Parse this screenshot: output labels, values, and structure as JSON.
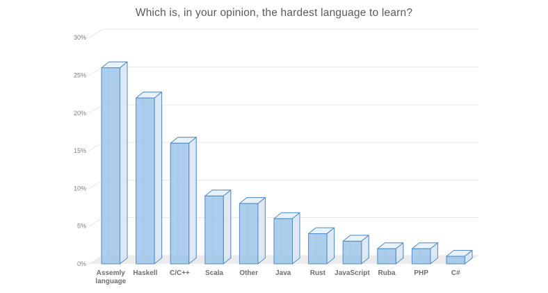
{
  "page": {
    "background": "#FFFFFF"
  },
  "chart_data": {
    "type": "bar",
    "style": "3d-box-columns",
    "title": "Which is, in your opinion, the hardest language to learn?",
    "categories": [
      "Assemly language",
      "Haskell",
      "C/C++",
      "Scala",
      "Other",
      "Java",
      "Rust",
      "JavaScript",
      "Ruba",
      "PHP",
      "C#"
    ],
    "values": [
      26,
      22,
      16,
      9,
      8,
      6,
      4,
      3,
      2,
      2,
      1
    ],
    "unit": "%",
    "xlabel": "",
    "ylabel": "",
    "ylim": [
      0,
      30
    ],
    "ytick_step": 5,
    "yticks": [
      "0%",
      "5%",
      "10%",
      "15%",
      "20%",
      "25%",
      "30%"
    ],
    "grid": true,
    "legend": false,
    "colors": {
      "bar_fill": "#9DC5E9",
      "bar_fill_opacity": "0.85",
      "bar_top": "#E9F1F9",
      "bar_side": "#D9E7F4",
      "bar_edge": "#4E8BC8",
      "bar_back_edge": "#9FC2E5",
      "gridline": "#E7E7E7",
      "floor": "#ECECEC",
      "title_text": "#595959",
      "axis_text": "#7F7F7F",
      "category_text": "#6E6E6E"
    }
  }
}
